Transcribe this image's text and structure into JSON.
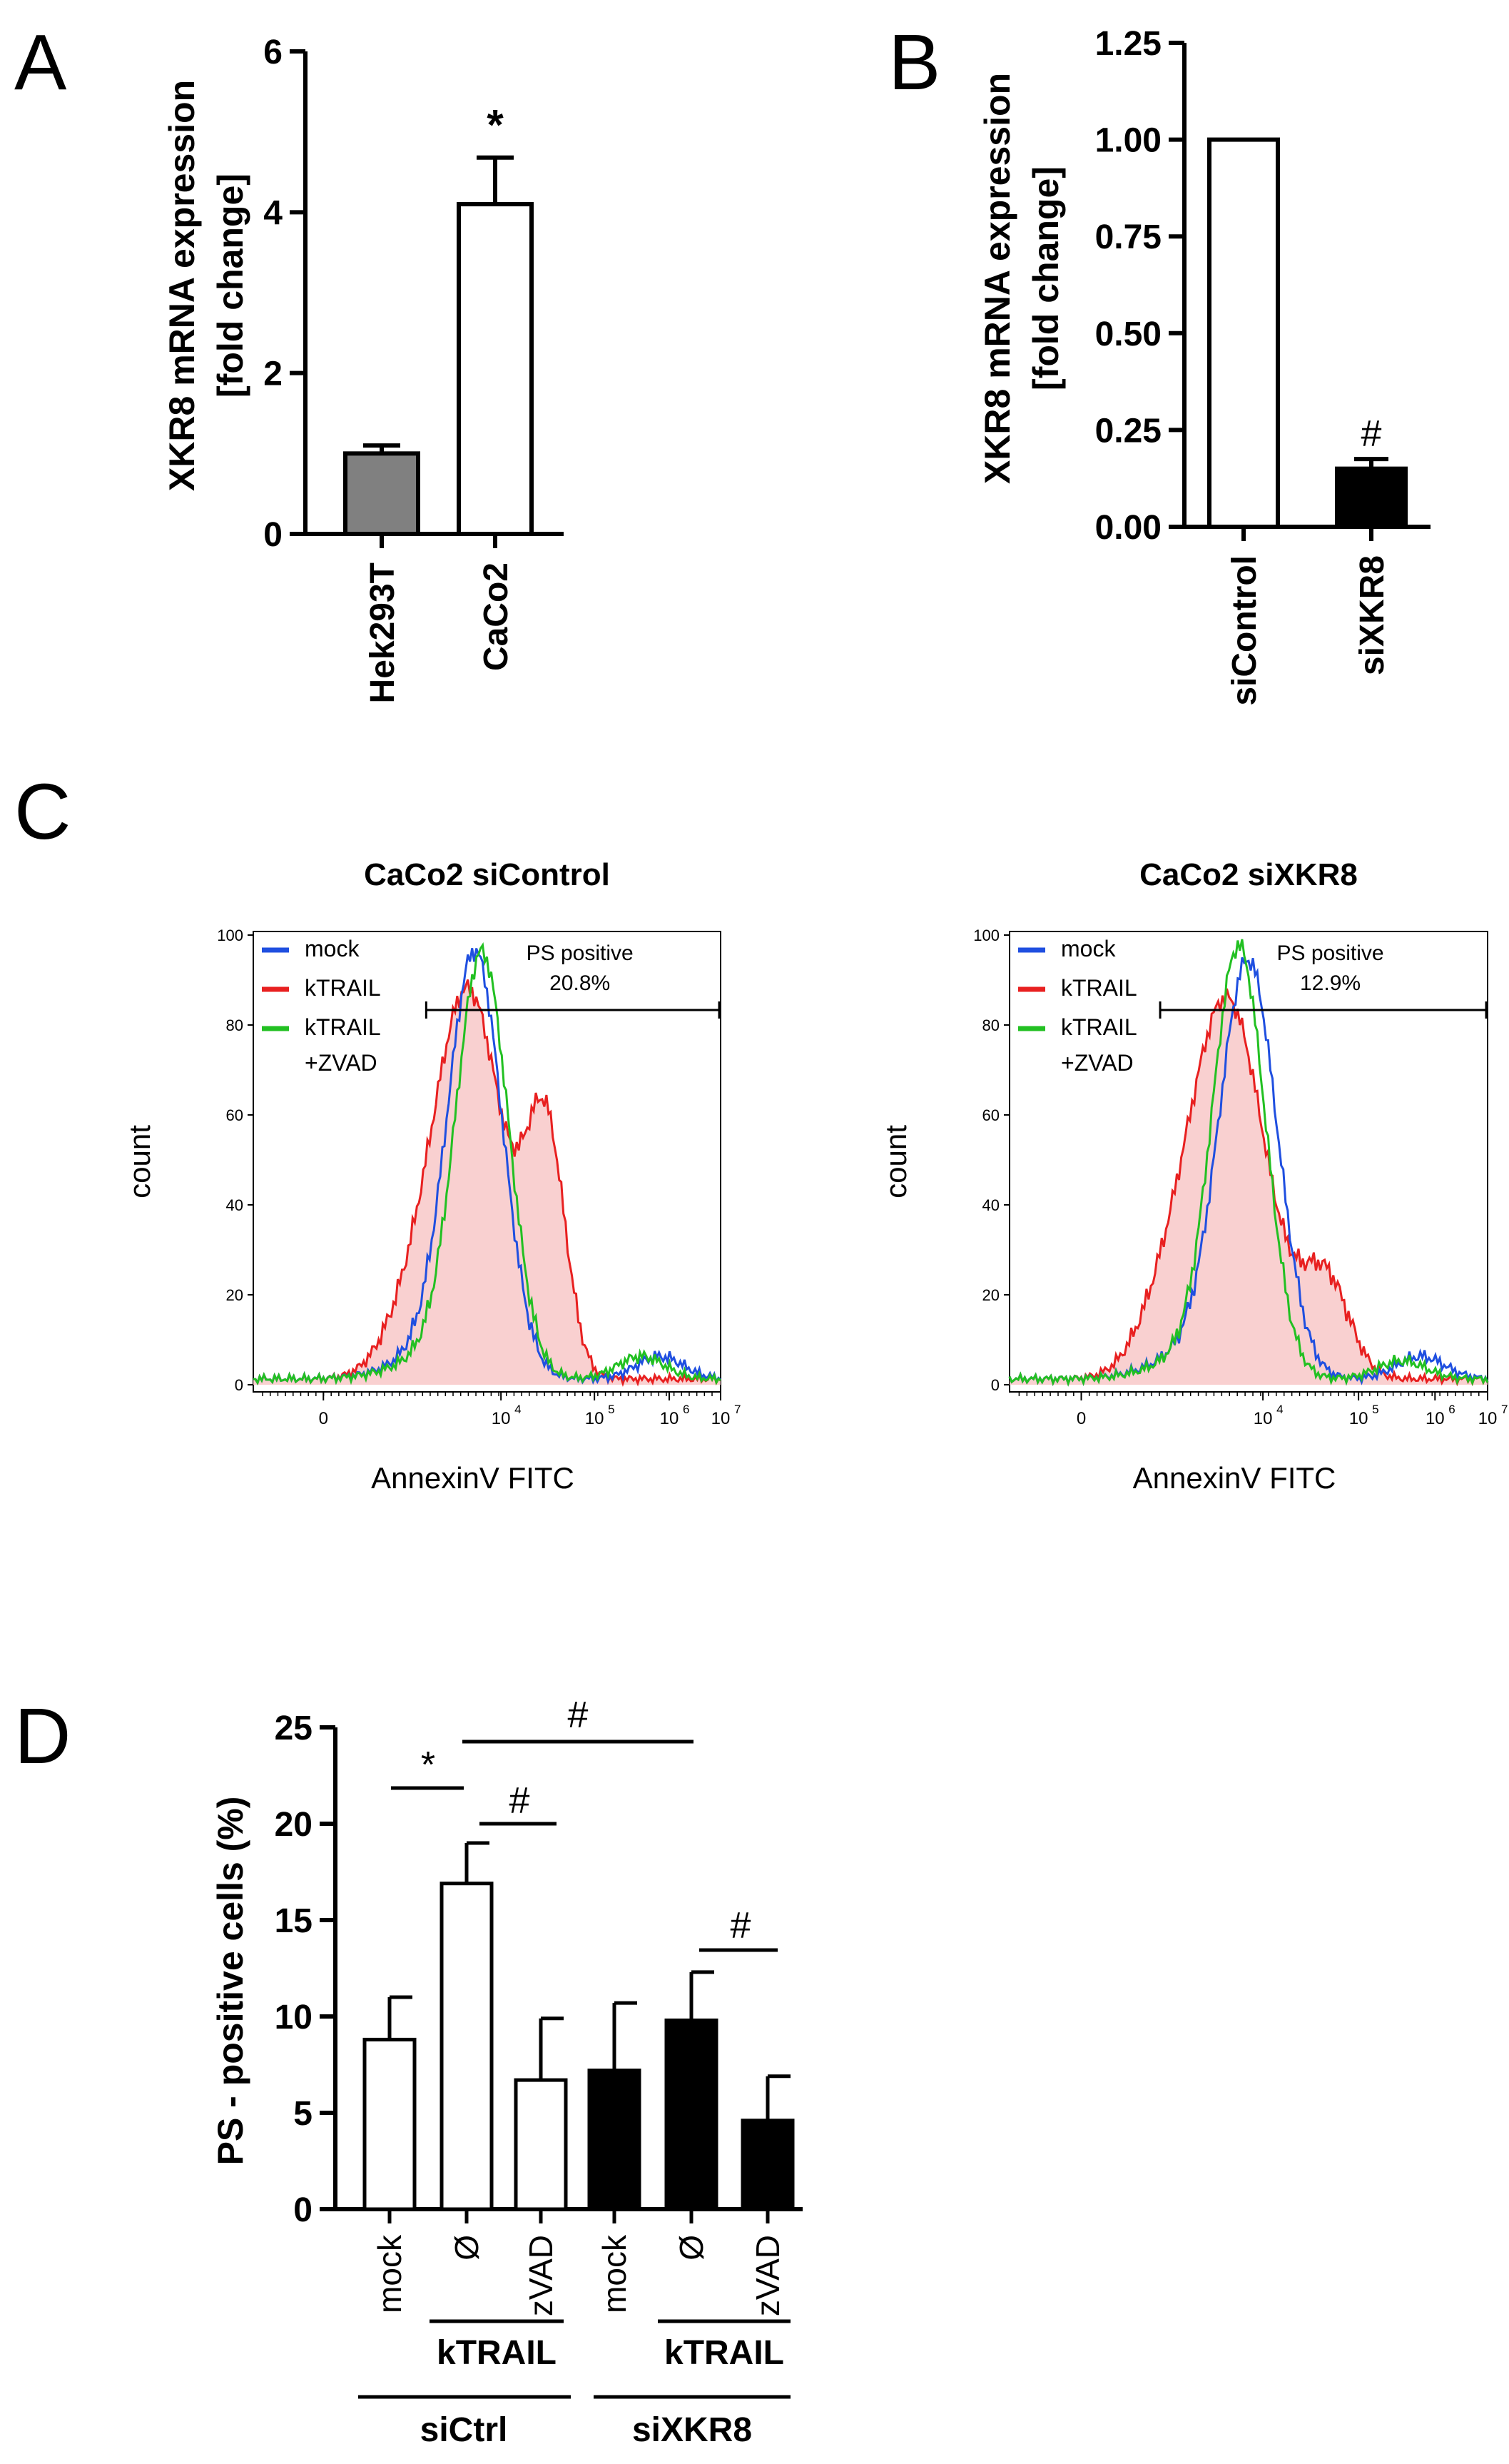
{
  "chart_data": [
    {
      "panel": "A",
      "type": "bar",
      "ylabel_line1": "XKR8 mRNA expression",
      "ylabel_line2": "[fold change]",
      "categories": [
        "Hek293T",
        "CaCo2"
      ],
      "values": [
        1.0,
        4.1
      ],
      "errors": [
        0.1,
        0.58
      ],
      "bar_colors": [
        "#808080",
        "#ffffff"
      ],
      "ylim": [
        0,
        6
      ],
      "yticks": [
        "0",
        "2",
        "4",
        "6"
      ],
      "significance": "*"
    },
    {
      "panel": "B",
      "type": "bar",
      "ylabel_line1": "XKR8 mRNA expression",
      "ylabel_line2": "[fold change]",
      "categories": [
        "siControl",
        "siXKR8"
      ],
      "values": [
        1.0,
        0.15
      ],
      "errors": [
        0,
        0.025
      ],
      "bar_colors": [
        "#ffffff",
        "#000000"
      ],
      "ylim": [
        0,
        1.25
      ],
      "yticks": [
        "0.00",
        "0.25",
        "0.50",
        "0.75",
        "1.00",
        "1.25"
      ],
      "significance": "#"
    },
    {
      "panel": "C",
      "type": "line",
      "subplots": [
        {
          "title": "CaCo2 siControl",
          "gate_label": "PS positive",
          "gate_value": "20.8%",
          "series": [
            {
              "name": "mock",
              "color": "#1f4fe0"
            },
            {
              "name": "kTRAIL",
              "color": "#e82020"
            },
            {
              "name": "kTRAIL",
              "name2": "+ZVAD",
              "color": "#22c022"
            }
          ]
        },
        {
          "title": "CaCo2 siXKR8",
          "gate_label": "PS positive",
          "gate_value": "12.9%",
          "series": [
            {
              "name": "mock",
              "color": "#1f4fe0"
            },
            {
              "name": "kTRAIL",
              "color": "#e82020"
            },
            {
              "name": "kTRAIL",
              "name2": "+ZVAD",
              "color": "#22c022"
            }
          ]
        }
      ],
      "ylabel": "count",
      "xlabel": "AnnexinV FITC",
      "yticks": [
        "0",
        "20",
        "40",
        "60",
        "80",
        "100"
      ],
      "xticks": [
        "0",
        "10",
        "10",
        "10",
        "10"
      ],
      "xtick_exponents": [
        "",
        "4",
        "5",
        "6",
        "7"
      ]
    },
    {
      "panel": "D",
      "type": "bar",
      "ylabel": "PS - positive cells (%)",
      "categories": [
        "mock",
        "Ø",
        "zVAD",
        "mock",
        "Ø",
        "zVAD"
      ],
      "values": [
        8.8,
        16.9,
        6.7,
        7.2,
        9.8,
        4.6
      ],
      "errors": [
        2.2,
        2.1,
        3.2,
        3.5,
        2.5,
        2.3
      ],
      "bar_colors": [
        "#ffffff",
        "#ffffff",
        "#ffffff",
        "#000000",
        "#000000",
        "#000000"
      ],
      "ylim": [
        0,
        25
      ],
      "yticks": [
        "0",
        "5",
        "10",
        "15",
        "20",
        "25"
      ],
      "group_labels": [
        "kTRAIL",
        "kTRAIL"
      ],
      "outer_labels": [
        "siCtrl",
        "siXKR8"
      ],
      "significance": [
        "*",
        "#",
        "#",
        "#"
      ]
    }
  ],
  "panel_labels": [
    "A",
    "B",
    "C",
    "D"
  ]
}
